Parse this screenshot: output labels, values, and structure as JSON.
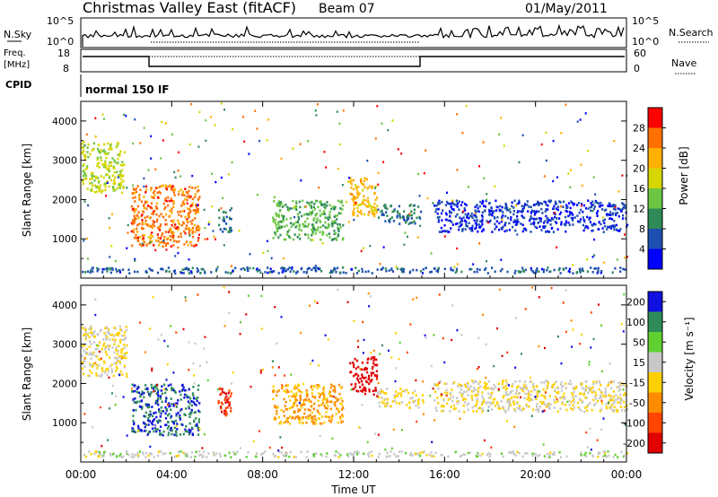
{
  "header": {
    "station": "Christmas Valley East (fitACF)",
    "beam": "Beam 07",
    "date": "01/May/2011"
  },
  "panels": {
    "nsky": {
      "left_label": "N.Sky",
      "right_label": "N.Search",
      "left_ticks": [
        "10^5",
        "10^0"
      ],
      "right_ticks": [
        "10^5",
        "10^0"
      ]
    },
    "freq": {
      "left_label_1": "Freq.",
      "left_label_2": "[MHz]",
      "right_label": "Nave",
      "left_ticks": [
        "18",
        "8"
      ],
      "right_ticks": [
        "60",
        "0"
      ]
    },
    "cpid": {
      "label": "CPID",
      "mode": "normal 150 IF"
    }
  },
  "power": {
    "ylabel": "Slant Range [km]",
    "colorbar_label": "Power [dB]",
    "colorbar_ticks": [
      "28",
      "24",
      "20",
      "16",
      "12",
      "8",
      "4"
    ],
    "colors": [
      "#0000ff",
      "#1d4fb0",
      "#2e8b57",
      "#6cc644",
      "#d6d600",
      "#ffb000",
      "#ff7000",
      "#ff0000"
    ]
  },
  "velocity": {
    "ylabel": "Slant Range [km]",
    "colorbar_label": "Velocity [m s⁻¹]",
    "colorbar_ticks": [
      "200",
      "100",
      "50",
      "15",
      "-15",
      "-50",
      "-100",
      "-200"
    ],
    "colors": [
      "#1010e0",
      "#2e8b57",
      "#60d030",
      "#c8c8c8",
      "#ffd000",
      "#ff8c00",
      "#ff4500",
      "#e00000"
    ]
  },
  "xaxis": {
    "label": "Time UT",
    "ticks": [
      "00:00",
      "04:00",
      "08:00",
      "12:00",
      "16:00",
      "20:00",
      "00:00"
    ]
  },
  "chart_data": [
    {
      "type": "heatmap",
      "name": "power",
      "xlabel": "Time UT",
      "ylabel": "Slant Range [km]",
      "xlim": [
        0,
        24
      ],
      "ylim": [
        0,
        4500
      ],
      "yticks": [
        1000,
        2000,
        3000,
        4000
      ],
      "colorbar": {
        "label": "Power [dB]",
        "range": [
          0,
          30
        ],
        "ticks": [
          4,
          8,
          12,
          16,
          20,
          24,
          28
        ]
      },
      "regions": [
        {
          "t": [
            0.0,
            1.9
          ],
          "r": [
            2200,
            3500
          ],
          "level": 16
        },
        {
          "t": [
            2.2,
            5.2
          ],
          "r": [
            800,
            2400
          ],
          "level": 24
        },
        {
          "t": [
            6.0,
            6.6
          ],
          "r": [
            1200,
            1900
          ],
          "level": 8
        },
        {
          "t": [
            8.4,
            11.5
          ],
          "r": [
            1000,
            2000
          ],
          "level": 12
        },
        {
          "t": [
            11.8,
            13.0
          ],
          "r": [
            1600,
            2600
          ],
          "level": 20
        },
        {
          "t": [
            13.0,
            15.0
          ],
          "r": [
            1400,
            1900
          ],
          "level": 8
        },
        {
          "t": [
            15.5,
            24.0
          ],
          "r": [
            1200,
            2000
          ],
          "level": 4
        },
        {
          "t": [
            0.0,
            24.0
          ],
          "r": [
            150,
            300
          ],
          "level": 6
        }
      ]
    },
    {
      "type": "heatmap",
      "name": "velocity",
      "xlabel": "Time UT",
      "ylabel": "Slant Range [km]",
      "xlim": [
        0,
        24
      ],
      "ylim": [
        0,
        4500
      ],
      "yticks": [
        1000,
        2000,
        3000,
        4000
      ],
      "colorbar": {
        "label": "Velocity [m s⁻¹]",
        "range": [
          -200,
          200
        ],
        "ticks": [
          200,
          100,
          50,
          15,
          -15,
          -50,
          -100,
          -200
        ]
      },
      "regions": [
        {
          "t": [
            0.0,
            2.0
          ],
          "r": [
            2200,
            3500
          ],
          "level": 0
        },
        {
          "t": [
            2.2,
            5.2
          ],
          "r": [
            700,
            2000
          ],
          "level": 150
        },
        {
          "t": [
            6.0,
            6.6
          ],
          "r": [
            1200,
            1900
          ],
          "level": -150
        },
        {
          "t": [
            8.4,
            11.5
          ],
          "r": [
            1000,
            2000
          ],
          "level": -60
        },
        {
          "t": [
            11.8,
            13.0
          ],
          "r": [
            1700,
            2700
          ],
          "level": -200
        },
        {
          "t": [
            13.0,
            15.0
          ],
          "r": [
            1400,
            1900
          ],
          "level": 0
        },
        {
          "t": [
            15.5,
            24.0
          ],
          "r": [
            1300,
            2100
          ],
          "level": 0
        },
        {
          "t": [
            0.0,
            24.0
          ],
          "r": [
            150,
            300
          ],
          "level": 30
        }
      ]
    }
  ]
}
